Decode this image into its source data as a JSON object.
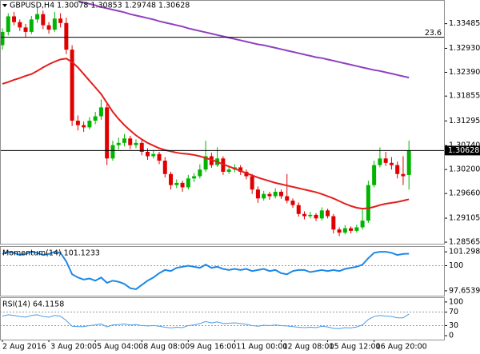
{
  "chart_data": [
    {
      "type": "candlestick",
      "title": "GBPUSD,H4  1.30078 1.30853 1.29748 1.30628",
      "x": [
        "2 Aug 2016",
        null,
        null,
        null,
        null,
        null,
        null,
        null,
        "3 Aug 20:00",
        null,
        null,
        null,
        null,
        null,
        null,
        null,
        "5 Aug 04:00",
        null,
        null,
        null,
        null,
        null,
        null,
        null,
        "8 Aug 08:00",
        null,
        null,
        null,
        null,
        null,
        null,
        null,
        "9 Aug 16:00",
        null,
        null,
        null,
        null,
        null,
        null,
        null,
        "11 Aug 00:00",
        null,
        null,
        null,
        null,
        null,
        null,
        null,
        "12 Aug 08:00",
        null,
        null,
        null,
        null,
        null,
        null,
        null,
        "15 Aug 12:00",
        null,
        null,
        null,
        null,
        null,
        null,
        null,
        "16 Aug 20:00",
        null,
        null,
        null,
        null,
        null,
        null
      ],
      "ohlc": [
        [
          1.33,
          1.3338,
          1.329,
          1.333
        ],
        [
          1.333,
          1.3372,
          1.3322,
          1.3365
        ],
        [
          1.3365,
          1.3375,
          1.3345,
          1.3352
        ],
        [
          1.3352,
          1.3358,
          1.3332,
          1.334
        ],
        [
          1.334,
          1.3348,
          1.3318,
          1.333
        ],
        [
          1.333,
          1.3366,
          1.3325,
          1.3358
        ],
        [
          1.3358,
          1.3385,
          1.335,
          1.337
        ],
        [
          1.337,
          1.3378,
          1.3336,
          1.3345
        ],
        [
          1.3345,
          1.3352,
          1.3326,
          1.3335
        ],
        [
          1.3335,
          1.3375,
          1.333,
          1.336
        ],
        [
          1.336,
          1.3372,
          1.334,
          1.335
        ],
        [
          1.335,
          1.3362,
          1.328,
          1.329
        ],
        [
          1.329,
          1.33,
          1.3118,
          1.313
        ],
        [
          1.313,
          1.3142,
          1.3108,
          1.312
        ],
        [
          1.312,
          1.3128,
          1.3105,
          1.3115
        ],
        [
          1.3115,
          1.3138,
          1.311,
          1.313
        ],
        [
          1.313,
          1.315,
          1.3122,
          1.314
        ],
        [
          1.314,
          1.3178,
          1.3132,
          1.316
        ],
        [
          1.316,
          1.3168,
          1.303,
          1.3045
        ],
        [
          1.3045,
          1.3085,
          1.304,
          1.3075
        ],
        [
          1.3075,
          1.3092,
          1.3065,
          1.308
        ],
        [
          1.308,
          1.31,
          1.3072,
          1.309
        ],
        [
          1.309,
          1.3096,
          1.3066,
          1.3075
        ],
        [
          1.3075,
          1.3088,
          1.3068,
          1.308
        ],
        [
          1.308,
          1.3086,
          1.3052,
          1.306
        ],
        [
          1.306,
          1.3068,
          1.3042,
          1.305
        ],
        [
          1.305,
          1.3064,
          1.3045,
          1.3055
        ],
        [
          1.3055,
          1.306,
          1.3032,
          1.304
        ],
        [
          1.304,
          1.3048,
          1.3002,
          1.301
        ],
        [
          1.301,
          1.3015,
          1.2975,
          1.2985
        ],
        [
          1.2985,
          1.2998,
          1.2978,
          1.299
        ],
        [
          1.299,
          1.2995,
          1.297,
          1.298
        ],
        [
          1.298,
          1.3008,
          1.2975,
          1.3
        ],
        [
          1.3,
          1.3012,
          1.2992,
          1.3005
        ],
        [
          1.3005,
          1.3032,
          1.3,
          1.302
        ],
        [
          1.302,
          1.3085,
          1.3015,
          1.305
        ],
        [
          1.305,
          1.3058,
          1.3024,
          1.303
        ],
        [
          1.303,
          1.307,
          1.3026,
          1.3045
        ],
        [
          1.3045,
          1.305,
          1.3008,
          1.3015
        ],
        [
          1.3015,
          1.3028,
          1.301,
          1.302
        ],
        [
          1.302,
          1.3032,
          1.3014,
          1.3025
        ],
        [
          1.3025,
          1.303,
          1.3008,
          1.3015
        ],
        [
          1.3015,
          1.302,
          1.2998,
          1.3005
        ],
        [
          1.3005,
          1.301,
          1.2965,
          1.2975
        ],
        [
          1.2975,
          1.2982,
          1.2945,
          1.2955
        ],
        [
          1.2955,
          1.2972,
          1.295,
          1.2965
        ],
        [
          1.2965,
          1.297,
          1.2952,
          1.296
        ],
        [
          1.296,
          1.2978,
          1.2955,
          1.297
        ],
        [
          1.297,
          1.2975,
          1.2954,
          1.296
        ],
        [
          1.296,
          1.301,
          1.2944,
          1.295
        ],
        [
          1.295,
          1.2955,
          1.2934,
          1.294
        ],
        [
          1.294,
          1.2946,
          1.2914,
          1.292
        ],
        [
          1.292,
          1.2926,
          1.2908,
          1.2915
        ],
        [
          1.2915,
          1.2925,
          1.291,
          1.2918
        ],
        [
          1.2918,
          1.2922,
          1.2904,
          1.291
        ],
        [
          1.291,
          1.2935,
          1.2905,
          1.2928
        ],
        [
          1.2928,
          1.2932,
          1.291,
          1.2915
        ],
        [
          1.2915,
          1.292,
          1.2876,
          1.2885
        ],
        [
          1.2885,
          1.289,
          1.287,
          1.2878
        ],
        [
          1.2878,
          1.2895,
          1.2874,
          1.2888
        ],
        [
          1.2888,
          1.2892,
          1.2876,
          1.2882
        ],
        [
          1.2882,
          1.2896,
          1.2878,
          1.289
        ],
        [
          1.289,
          1.293,
          1.2885,
          1.2905
        ],
        [
          1.2905,
          1.2995,
          1.29,
          1.2985
        ],
        [
          1.2985,
          1.304,
          1.298,
          1.303
        ],
        [
          1.303,
          1.307,
          1.3025,
          1.3045
        ],
        [
          1.3045,
          1.306,
          1.3028,
          1.3035
        ],
        [
          1.3035,
          1.3048,
          1.302,
          1.303
        ],
        [
          1.303,
          1.3038,
          1.3,
          1.301
        ],
        [
          1.301,
          1.305,
          1.2985,
          1.3005
        ],
        [
          1.30078,
          1.30853,
          1.29748,
          1.30628
        ]
      ],
      "up_color": "#00b400",
      "down_color": "#e00000",
      "series": [
        {
          "color": "#e41e1e",
          "values": [
            1.3213,
            1.3217,
            1.3222,
            1.3226,
            1.3231,
            1.3235,
            1.3242,
            1.325,
            1.3257,
            1.3263,
            1.3268,
            1.327,
            1.3262,
            1.325,
            1.3235,
            1.322,
            1.3205,
            1.319,
            1.317,
            1.315,
            1.3134,
            1.312,
            1.3108,
            1.3097,
            1.3088,
            1.308,
            1.3074,
            1.3068,
            1.3064,
            1.3061,
            1.3058,
            1.3056,
            1.3055,
            1.3053,
            1.305,
            1.3046,
            1.3042,
            1.3037,
            1.3032,
            1.3027,
            1.3022,
            1.3017,
            1.3012,
            1.3007,
            1.3002,
            1.2998,
            1.2994,
            1.299,
            1.2987,
            1.2984,
            1.2981,
            1.2978,
            1.2975,
            1.2972,
            1.2969,
            1.2965,
            1.296,
            1.2955,
            1.2949,
            1.2943,
            1.2938,
            1.2934,
            1.2932,
            1.2933,
            1.2936,
            1.294,
            1.2943,
            1.2945,
            1.2947,
            1.295,
            1.2953
          ]
        },
        {
          "color": "#9040c0",
          "values": [
            null,
            null,
            null,
            null,
            null,
            null,
            null,
            null,
            null,
            null,
            null,
            null,
            null,
            1.3399,
            1.3396,
            1.3393,
            1.339,
            1.3386,
            1.3383,
            1.338,
            1.3377,
            1.3374,
            1.337,
            1.3367,
            1.3364,
            1.3361,
            1.3358,
            1.3354,
            1.3351,
            1.3348,
            1.3345,
            1.3342,
            1.3338,
            1.3335,
            1.3332,
            1.3329,
            1.3326,
            1.3323,
            1.332,
            1.3317,
            1.3314,
            1.3311,
            1.3308,
            1.3305,
            1.3302,
            1.33,
            1.3297,
            1.3294,
            1.3291,
            1.3288,
            1.3285,
            1.3282,
            1.3279,
            1.3276,
            1.3273,
            1.3271,
            1.3268,
            1.3265,
            1.3262,
            1.3259,
            1.3256,
            1.3253,
            1.325,
            1.3247,
            1.3244,
            1.3242,
            1.3239,
            1.3236,
            1.3233,
            1.323,
            1.3227
          ]
        }
      ],
      "levels": [
        {
          "label": "23.6",
          "value": 1.3318
        }
      ],
      "ylim": [
        1.2853,
        1.34
      ],
      "yticks": [
        1.33485,
        {
          "value": 1.3293,
          "label": "1.32930"
        },
        {
          "value": 1.3239,
          "label": "1.32390"
        },
        1.31855,
        1.31295,
        {
          "value": 1.3074,
          "label": "1.30740"
        },
        {
          "value": 1.302,
          "label": "1.30200"
        },
        {
          "value": 1.2966,
          "label": "1.29660"
        },
        1.29105,
        1.28565
      ]
    },
    {
      "type": "line",
      "title": "Momentum(14) 101.1233",
      "color": "#1e88e5",
      "values": [
        101.1,
        101.3,
        101.2,
        101.0,
        101.1,
        101.3,
        101.2,
        101.0,
        101.1,
        101.3,
        101.2,
        100.4,
        99.2,
        98.9,
        98.7,
        98.8,
        98.6,
        98.9,
        98.4,
        98.6,
        98.5,
        98.3,
        97.9,
        97.8,
        98.2,
        98.6,
        98.9,
        99.3,
        99.6,
        99.5,
        99.8,
        99.9,
        100.0,
        99.9,
        99.8,
        100.1,
        99.8,
        99.9,
        99.7,
        99.6,
        99.7,
        99.6,
        99.7,
        99.5,
        99.6,
        99.7,
        99.5,
        99.6,
        99.3,
        99.2,
        99.5,
        99.6,
        99.6,
        99.4,
        99.5,
        99.6,
        99.5,
        99.6,
        99.5,
        99.7,
        99.8,
        99.9,
        100.1,
        100.7,
        101.2,
        101.3,
        101.3,
        101.2,
        101.0,
        101.1,
        101.1233
      ],
      "ylim": [
        97.199,
        101.754
      ],
      "yticks": [
        101.2982,
        100,
        97.6539
      ],
      "grid": "inner-dotted"
    },
    {
      "type": "line",
      "title": "RSI(14) 64.1158",
      "color": "#4a9be8",
      "values": [
        58,
        62,
        60,
        57,
        55,
        60,
        62,
        57,
        55,
        60,
        58,
        45,
        28,
        27,
        27,
        30,
        32,
        35,
        26,
        32,
        33,
        35,
        32,
        33,
        30,
        29,
        30,
        28,
        25,
        23,
        25,
        24,
        30,
        32,
        36,
        42,
        38,
        41,
        36,
        37,
        38,
        36,
        34,
        30,
        28,
        31,
        30,
        32,
        30,
        29,
        27,
        25,
        24,
        25,
        24,
        28,
        26,
        22,
        21,
        24,
        23,
        26,
        32,
        48,
        57,
        60,
        58,
        57,
        53,
        53,
        64.1158
      ],
      "ylim": [
        -11.6,
        111.6
      ],
      "yticks": [
        100,
        70,
        30,
        0
      ],
      "grid": "inner-dotted"
    }
  ]
}
